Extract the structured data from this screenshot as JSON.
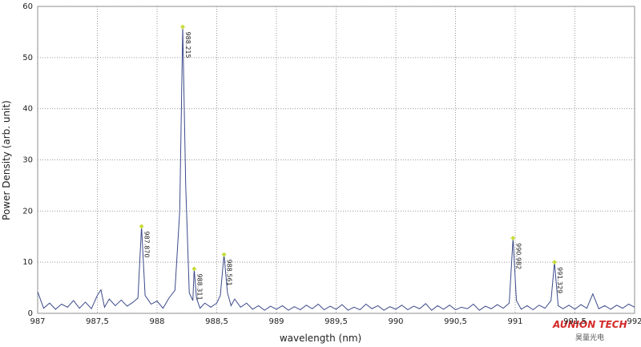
{
  "chart_data": {
    "type": "line",
    "x_label": "wavelength (nm)",
    "y_label": "Power Density (arb. unit)",
    "xlim": [
      987,
      992
    ],
    "ylim": [
      0,
      60
    ],
    "xticks": [
      987,
      {
        "value": 987.5,
        "label": "987,5"
      },
      988,
      {
        "value": 988.5,
        "label": "988,5"
      },
      989,
      {
        "value": 989.5,
        "label": "989,5"
      },
      990,
      {
        "value": 990.5,
        "label": "990,5"
      },
      991,
      {
        "value": 991.5,
        "label": "991,5"
      },
      992
    ],
    "yticks": [
      0,
      10,
      20,
      30,
      40,
      50,
      60
    ],
    "grid": true,
    "series": [
      {
        "color": "#3c4a8a",
        "x": [
          987.0,
          987.05,
          987.1,
          987.15,
          987.2,
          987.25,
          987.3,
          987.35,
          987.4,
          987.45,
          987.5,
          987.53,
          987.56,
          987.6,
          987.65,
          987.7,
          987.75,
          987.8,
          987.84,
          987.87,
          987.9,
          987.95,
          988.0,
          988.05,
          988.1,
          988.15,
          988.19,
          988.215,
          988.24,
          988.27,
          988.3,
          988.311,
          988.33,
          988.36,
          988.4,
          988.45,
          988.5,
          988.53,
          988.561,
          988.59,
          988.62,
          988.65,
          988.7,
          988.75,
          988.8,
          988.85,
          988.9,
          988.95,
          989.0,
          989.05,
          989.1,
          989.15,
          989.2,
          989.25,
          989.3,
          989.35,
          989.4,
          989.45,
          989.5,
          989.55,
          989.6,
          989.65,
          989.7,
          989.75,
          989.8,
          989.85,
          989.9,
          989.95,
          990.0,
          990.05,
          990.1,
          990.15,
          990.2,
          990.25,
          990.3,
          990.35,
          990.4,
          990.45,
          990.5,
          990.55,
          990.6,
          990.65,
          990.7,
          990.75,
          990.8,
          990.85,
          990.9,
          990.95,
          990.982,
          991.01,
          991.05,
          991.1,
          991.15,
          991.2,
          991.25,
          991.3,
          991.329,
          991.36,
          991.4,
          991.45,
          991.5,
          991.55,
          991.6,
          991.65,
          991.7,
          991.75,
          991.8,
          991.85,
          991.9,
          991.95,
          992.0
        ],
        "values": [
          4.2,
          1.0,
          2.0,
          0.8,
          1.8,
          1.2,
          2.5,
          1.0,
          2.2,
          0.9,
          3.5,
          4.6,
          1.2,
          2.8,
          1.5,
          2.6,
          1.4,
          2.2,
          3.0,
          17,
          3.5,
          1.8,
          2.4,
          1.0,
          3.0,
          4.5,
          20,
          56,
          25,
          4.0,
          2.5,
          8.7,
          3.0,
          1.0,
          2.0,
          1.2,
          2.0,
          3.5,
          11.5,
          4.0,
          1.5,
          2.8,
          1.2,
          2.0,
          0.8,
          1.5,
          0.6,
          1.4,
          0.8,
          1.5,
          0.6,
          1.3,
          0.7,
          1.6,
          0.9,
          1.8,
          0.7,
          1.4,
          0.8,
          1.7,
          0.6,
          1.2,
          0.7,
          1.8,
          0.9,
          1.5,
          0.6,
          1.3,
          0.8,
          1.6,
          0.7,
          1.4,
          0.9,
          1.9,
          0.6,
          1.5,
          0.8,
          1.6,
          0.7,
          1.2,
          0.9,
          1.8,
          0.6,
          1.4,
          0.9,
          1.7,
          1.0,
          2.0,
          14.7,
          2.5,
          0.8,
          1.5,
          0.7,
          1.6,
          1.0,
          2.5,
          10,
          1.5,
          0.9,
          1.6,
          0.8,
          1.7,
          1.0,
          3.8,
          0.9,
          1.5,
          0.8,
          1.6,
          1.0,
          1.8,
          1.2
        ]
      }
    ],
    "annotations": [
      {
        "x": 987.87,
        "y": 17,
        "label": "987.870"
      },
      {
        "x": 988.215,
        "y": 56,
        "label": "988.215"
      },
      {
        "x": 988.311,
        "y": 8.7,
        "label": "988.311"
      },
      {
        "x": 988.561,
        "y": 11.5,
        "label": "988.561"
      },
      {
        "x": 990.982,
        "y": 14.7,
        "label": "990.982"
      },
      {
        "x": 991.329,
        "y": 10,
        "label": "991.329"
      }
    ],
    "annotation_color": "#c8dc3c",
    "watermark": "AUNION TECH",
    "watermark_sub": "昊量光电"
  }
}
